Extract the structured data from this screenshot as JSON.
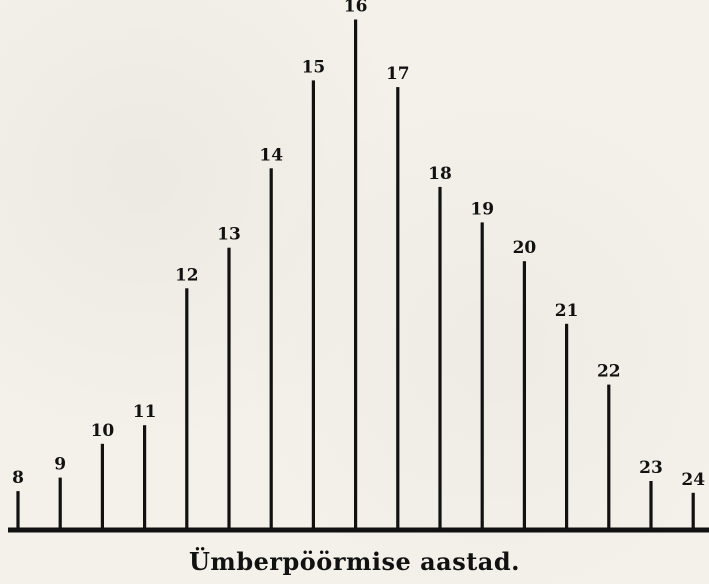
{
  "chart_data": {
    "type": "bar",
    "xlabel": "Ümberpöörmise aastad.",
    "categories": [
      "8",
      "9",
      "10",
      "11",
      "12",
      "13",
      "14",
      "15",
      "16",
      "17",
      "18",
      "19",
      "20",
      "21",
      "22",
      "23",
      "24"
    ],
    "values": [
      2.3,
      3.1,
      5.1,
      6.2,
      14.3,
      16.7,
      21.4,
      26.6,
      30.2,
      26.2,
      20.3,
      18.2,
      15.9,
      12.2,
      8.6,
      2.9,
      2.2
    ],
    "ylim": [
      0,
      31
    ],
    "grid": false,
    "legend": "none",
    "colors": {
      "bar": "#111111",
      "baseline": "#111111",
      "background": "#f4f1ea"
    }
  }
}
